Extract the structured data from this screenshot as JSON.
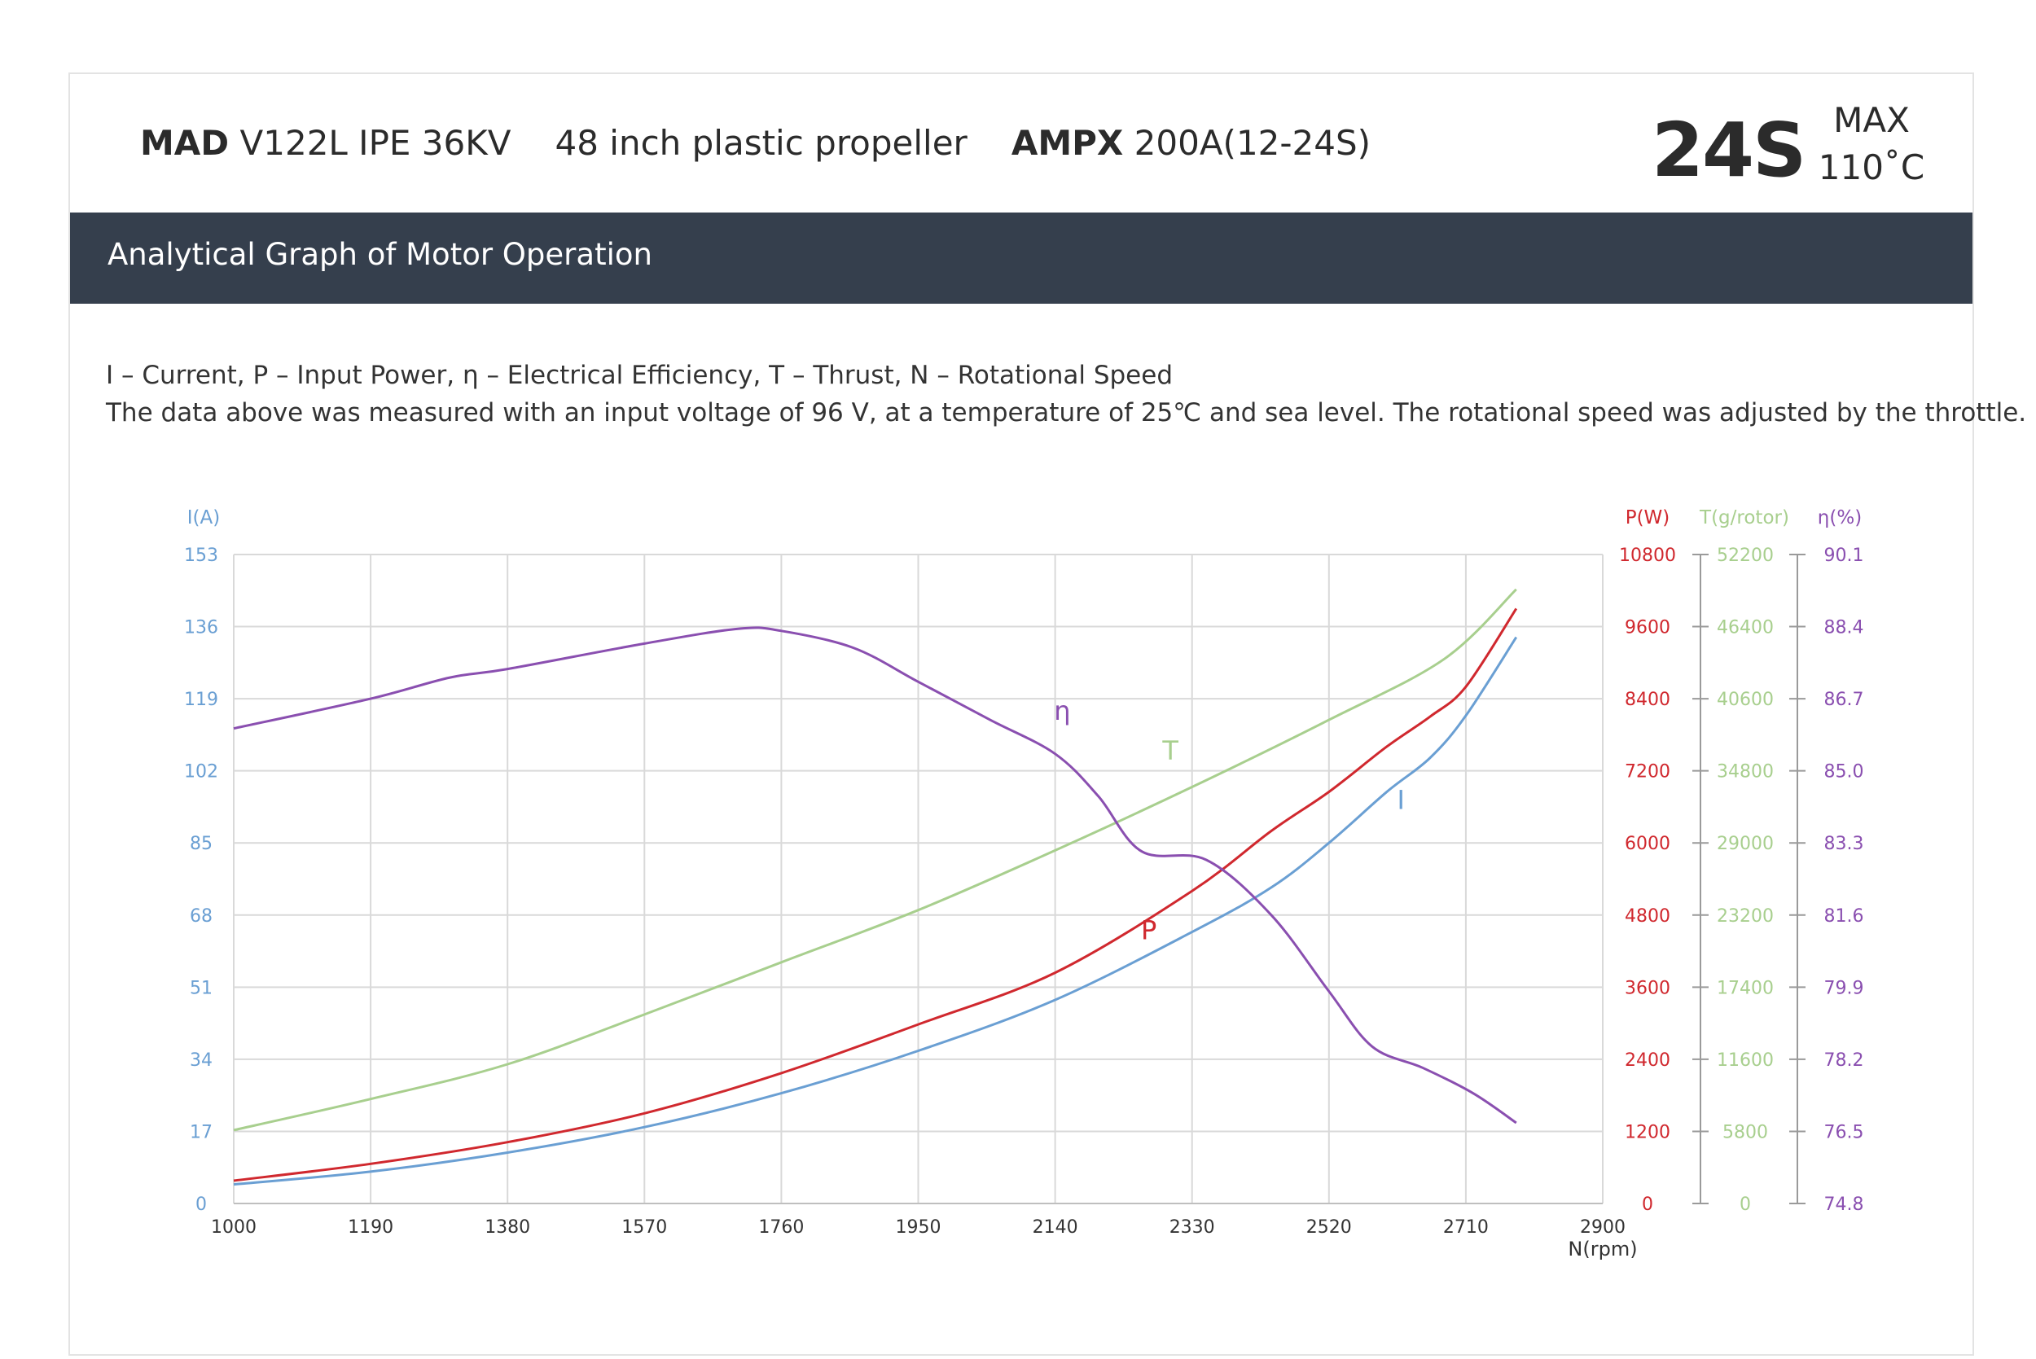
{
  "header": {
    "motor_brand": "MAD",
    "motor_model": "V122L IPE 36KV",
    "propeller": "48 inch plastic propeller",
    "esc_brand": "AMPX",
    "esc_model": "200A(12-24S)",
    "cells": "24S",
    "max_label": "MAX",
    "max_temp": "110˚C"
  },
  "banner": {
    "title": "Analytical Graph of Motor Operation"
  },
  "notes": {
    "legend": "I – Current, P – Input Power, η – Electrical Efficiency, T – Thrust,   N – Rotational Speed",
    "conditions": "The data above was measured with an input voltage of 96 V, at a temperature of 25℃ and sea level. The rotational speed was adjusted by the throttle."
  },
  "colors": {
    "current": "#6a9fd3",
    "power": "#d0282e",
    "thrust": "#a8cf8e",
    "efficiency": "#8a4fb0",
    "banner": "#353f4d",
    "grid": "#d9d9d9"
  },
  "chart_data": {
    "type": "line",
    "xlabel": "N(rpm)",
    "xlim": [
      1000,
      2900
    ],
    "x_ticks": [
      "1000",
      "1190",
      "1380",
      "1570",
      "1760",
      "1950",
      "2140",
      "2330",
      "2520",
      "2710",
      "2900"
    ],
    "grid": true,
    "axes": [
      {
        "id": "I",
        "label": "I(A)",
        "side": "left",
        "range": [
          0,
          153
        ],
        "ticks": [
          "0",
          "17",
          "34",
          "51",
          "68",
          "85",
          "102",
          "119",
          "136",
          "153"
        ]
      },
      {
        "id": "P",
        "label": "P(W)",
        "side": "right",
        "range": [
          0,
          10800
        ],
        "ticks": [
          "0",
          "1200",
          "2400",
          "3600",
          "4800",
          "6000",
          "7200",
          "8400",
          "9600",
          "10800"
        ]
      },
      {
        "id": "T",
        "label": "T(g/rotor)",
        "side": "right",
        "range": [
          0,
          52200
        ],
        "ticks": [
          "0",
          "5800",
          "11600",
          "17400",
          "23200",
          "29000",
          "34800",
          "40600",
          "46400",
          "52200"
        ]
      },
      {
        "id": "eta",
        "label": "η(%)",
        "side": "right",
        "range": [
          74.8,
          90.1
        ],
        "ticks": [
          "74.8",
          "76.5",
          "78.2",
          "79.9",
          "81.6",
          "83.3",
          "85.0",
          "86.7",
          "88.4",
          "90.1"
        ]
      }
    ],
    "series": [
      {
        "name": "I",
        "axis": "I",
        "x": [
          1000,
          1190,
          1380,
          1570,
          1760,
          1950,
          2140,
          2330,
          2440,
          2520,
          2600,
          2660,
          2710,
          2780
        ],
        "y": [
          4.5,
          7.5,
          12,
          18,
          26,
          36,
          48,
          64,
          74.5,
          85,
          97,
          105,
          115,
          133.5
        ]
      },
      {
        "name": "P",
        "axis": "P",
        "x": [
          1000,
          1190,
          1380,
          1570,
          1760,
          1950,
          2140,
          2330,
          2440,
          2520,
          2600,
          2660,
          2710,
          2780
        ],
        "y": [
          380,
          660,
          1020,
          1500,
          2170,
          2980,
          3840,
          5200,
          6200,
          6850,
          7600,
          8100,
          8600,
          9900
        ]
      },
      {
        "name": "T",
        "axis": "T",
        "x": [
          1000,
          1190,
          1380,
          1570,
          1760,
          1950,
          2140,
          2330,
          2520,
          2680,
          2780
        ],
        "y": [
          5900,
          8400,
          11200,
          15200,
          19400,
          23600,
          28400,
          33500,
          38900,
          43800,
          49400
        ]
      },
      {
        "name": "η",
        "axis": "eta",
        "x": [
          1000,
          1190,
          1300,
          1380,
          1570,
          1700,
          1760,
          1860,
          1950,
          2050,
          2140,
          2200,
          2260,
          2350,
          2440,
          2520,
          2580,
          2650,
          2720,
          2780
        ],
        "y": [
          86.0,
          86.7,
          87.2,
          87.4,
          88.0,
          88.35,
          88.3,
          87.9,
          87.1,
          86.2,
          85.4,
          84.4,
          83.1,
          82.9,
          81.6,
          79.8,
          78.5,
          78.0,
          77.4,
          76.7
        ]
      }
    ],
    "annotations": [
      {
        "text": "η",
        "x": 2150,
        "y_axis": "eta",
        "y": 86.2
      },
      {
        "text": "T",
        "x": 2300,
        "y_axis": "T",
        "y": 35700
      },
      {
        "text": "I",
        "x": 2620,
        "y_axis": "I",
        "y": 93
      },
      {
        "text": "P",
        "x": 2270,
        "y_axis": "P",
        "y": 4400
      }
    ]
  }
}
